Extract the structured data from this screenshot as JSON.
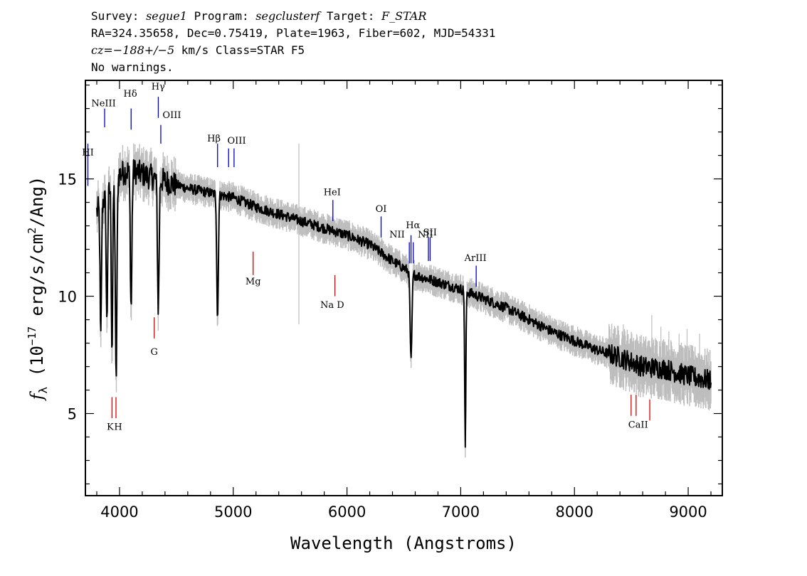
{
  "header": {
    "line1": {
      "survey_label": "Survey:",
      "survey": "segue1",
      "program_label": "Program:",
      "program": "segclusterf",
      "target_label": "Target:",
      "target": "F_STAR"
    },
    "line2": "RA=324.35658, Dec=0.75419, Plate=1963, Fiber=602, MJD=54331",
    "line3": {
      "cz": "cz=−188+/−5",
      "rest": "km/s Class=STAR F5"
    },
    "line4": "No warnings."
  },
  "colors": {
    "flux": "#000000",
    "error_band": "#bdbdbd",
    "emission": "#0000cc",
    "absorption": "#dd0000"
  },
  "chart_data": {
    "type": "line",
    "xlabel": "Wavelength (Angstroms)",
    "ylabel_parts": {
      "f": "f",
      "lambda": "λ",
      "open": "(10",
      "exp17": "−17",
      "mid": "erg/s/cm",
      "exp2": "2",
      "end": "/Ang)"
    },
    "xlim": [
      3700,
      9300
    ],
    "ylim": [
      1.5,
      19.2
    ],
    "xticks": [
      4000,
      5000,
      6000,
      7000,
      8000,
      9000
    ],
    "yticks": [
      5,
      10,
      15
    ],
    "x_minor_step": 200,
    "y_minor_step": 1,
    "grid": false,
    "continuum": {
      "x": [
        3800,
        3900,
        4000,
        4100,
        4200,
        4400,
        4600,
        4800,
        5000,
        5200,
        5400,
        5600,
        5800,
        6000,
        6200,
        6400,
        6600,
        6800,
        7000,
        7200,
        7400,
        7600,
        7800,
        8000,
        8200,
        8400,
        8600,
        8800,
        9000,
        9200
      ],
      "y": [
        13.6,
        14.4,
        15.2,
        15.4,
        15.2,
        14.9,
        14.6,
        14.4,
        14.2,
        13.8,
        13.5,
        13.2,
        12.9,
        12.6,
        12.2,
        11.5,
        10.9,
        10.6,
        10.3,
        9.9,
        9.5,
        9.0,
        8.5,
        8.1,
        7.7,
        7.4,
        7.0,
        6.9,
        6.6,
        6.4
      ]
    },
    "absorption_features": [
      {
        "x": 3835,
        "depth": 5.8,
        "width": 6
      },
      {
        "x": 3889,
        "depth": 5.5,
        "width": 6
      },
      {
        "x": 3934,
        "depth": 7.0,
        "width": 6
      },
      {
        "x": 3970,
        "depth": 8.5,
        "width": 7
      },
      {
        "x": 4102,
        "depth": 5.9,
        "width": 7
      },
      {
        "x": 4341,
        "depth": 5.5,
        "width": 7
      },
      {
        "x": 4862,
        "depth": 5.3,
        "width": 7
      },
      {
        "x": 6563,
        "depth": 3.8,
        "width": 8
      },
      {
        "x": 7040,
        "depth": 6.8,
        "width": 5
      }
    ],
    "spikes": [
      {
        "x": 5577,
        "y0": 8.8,
        "y1": 16.5
      },
      {
        "x": 8345,
        "y0": 6.5,
        "y1": 8.6
      },
      {
        "x": 8430,
        "y0": 6.4,
        "y1": 8.8
      },
      {
        "x": 8505,
        "y0": 6.3,
        "y1": 8.4
      },
      {
        "x": 8680,
        "y0": 5.8,
        "y1": 9.2
      },
      {
        "x": 8760,
        "y0": 5.9,
        "y1": 8.7
      },
      {
        "x": 8830,
        "y0": 5.8,
        "y1": 8.5
      },
      {
        "x": 8920,
        "y0": 5.6,
        "y1": 8.4
      },
      {
        "x": 8990,
        "y0": 5.5,
        "y1": 8.6
      },
      {
        "x": 9100,
        "y0": 5.4,
        "y1": 8.4
      }
    ],
    "lines": [
      {
        "label": "HI",
        "x": 3722,
        "y0": 14.7,
        "y1": 16.5,
        "type": "emission",
        "lx": 3722,
        "ly": 16.0
      },
      {
        "label": "NeIII",
        "x": 3869,
        "y0": 17.2,
        "y1": 18.0,
        "type": "emission",
        "lx": 3860,
        "ly": 18.1
      },
      {
        "label": "Hδ",
        "x": 4102,
        "y0": 17.1,
        "y1": 18.0,
        "type": "emission",
        "lx": 4095,
        "ly": 18.5
      },
      {
        "label": "Hγ",
        "x": 4341,
        "y0": 17.6,
        "y1": 18.5,
        "type": "emission",
        "lx": 4340,
        "ly": 18.8
      },
      {
        "label": "OIII",
        "x": 4363,
        "y0": 16.5,
        "y1": 17.3,
        "type": "emission",
        "lx": 4460,
        "ly": 17.6
      },
      {
        "label": "Hβ",
        "x": 4862,
        "y0": 15.5,
        "y1": 16.5,
        "type": "emission",
        "lx": 4830,
        "ly": 16.6
      },
      {
        "label": "OIII",
        "x": 4959,
        "y0": 15.5,
        "y1": 16.3,
        "type": "emission",
        "lx": 5030,
        "ly": 16.5
      },
      {
        "label": "OIII",
        "x": 5007,
        "y0": 15.5,
        "y1": 16.3,
        "type": "emission",
        "lx": 5030,
        "ly": 16.5
      },
      {
        "label": "HeI",
        "x": 5876,
        "y0": 13.2,
        "y1": 14.1,
        "type": "emission",
        "lx": 5870,
        "ly": 14.3
      },
      {
        "label": "OI",
        "x": 6300,
        "y0": 12.5,
        "y1": 13.4,
        "type": "emission",
        "lx": 6300,
        "ly": 13.6
      },
      {
        "label": "NII",
        "x": 6548,
        "y0": 11.4,
        "y1": 12.3,
        "type": "emission",
        "lx": 6440,
        "ly": 12.5
      },
      {
        "label": "Hα",
        "x": 6563,
        "y0": 11.4,
        "y1": 12.6,
        "type": "emission",
        "lx": 6580,
        "ly": 12.9
      },
      {
        "label": "NII",
        "x": 6583,
        "y0": 11.4,
        "y1": 12.3,
        "type": "emission",
        "lx": 6690,
        "ly": 12.5
      },
      {
        "label": "SII",
        "x": 6716,
        "y0": 11.5,
        "y1": 12.5,
        "type": "emission",
        "lx": 6730,
        "ly": 12.6
      },
      {
        "label": "SII",
        "x": 6731,
        "y0": 11.5,
        "y1": 12.5,
        "type": "emission",
        "lx": 6730,
        "ly": 12.6
      },
      {
        "label": "ArIII",
        "x": 7136,
        "y0": 10.4,
        "y1": 11.3,
        "type": "emission",
        "lx": 7130,
        "ly": 11.5
      },
      {
        "label": "K",
        "x": 3934,
        "y0": 4.8,
        "y1": 5.7,
        "type": "absorption",
        "lx": 3918,
        "ly": 4.3
      },
      {
        "label": "H",
        "x": 3969,
        "y0": 4.8,
        "y1": 5.7,
        "type": "absorption",
        "lx": 3988,
        "ly": 4.3
      },
      {
        "label": "G",
        "x": 4305,
        "y0": 8.2,
        "y1": 9.1,
        "type": "absorption",
        "lx": 4305,
        "ly": 7.5
      },
      {
        "label": "Mg",
        "x": 5175,
        "y0": 10.9,
        "y1": 11.9,
        "type": "absorption",
        "lx": 5175,
        "ly": 10.5
      },
      {
        "label": "Na D",
        "x": 5894,
        "y0": 10.0,
        "y1": 10.9,
        "type": "absorption",
        "lx": 5870,
        "ly": 9.5
      },
      {
        "label": "CaII",
        "x": 8498,
        "y0": 4.9,
        "y1": 5.8,
        "type": "absorption",
        "lx": 8560,
        "ly": 4.4
      },
      {
        "label": "CaII",
        "x": 8542,
        "y0": 4.9,
        "y1": 5.8,
        "type": "absorption",
        "lx": 8560,
        "ly": 4.4
      },
      {
        "label": "CaII",
        "x": 8662,
        "y0": 4.7,
        "y1": 5.6,
        "type": "absorption",
        "lx": 8560,
        "ly": 4.4
      }
    ]
  }
}
